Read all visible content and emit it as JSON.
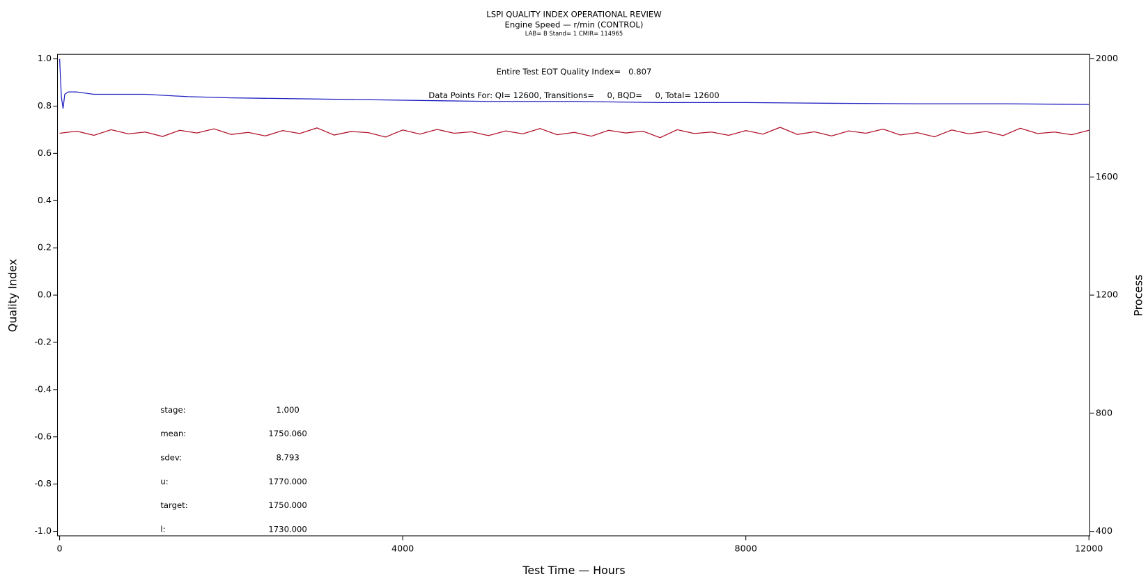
{
  "chart_data": {
    "type": "line",
    "title": "LSPI QUALITY INDEX OPERATIONAL REVIEW",
    "subtitle": "Engine Speed — r/min (CONTROL)",
    "subtitle2": "LAB= B Stand= 1 CMIR= 114965",
    "annotations": [
      "Entire Test EOT Quality Index=   0.807",
      "Data Points For: QI= 12600, Transitions=     0, BQD=     0, Total= 12600"
    ],
    "stats": [
      {
        "label": "stage:",
        "value": "1.000"
      },
      {
        "label": "mean:",
        "value": "1750.060"
      },
      {
        "label": "sdev:",
        "value": "8.793"
      },
      {
        "label": "u:",
        "value": "1770.000"
      },
      {
        "label": "target:",
        "value": "1750.000"
      },
      {
        "label": "l:",
        "value": "1730.000"
      }
    ],
    "x_label": "Test Time — Hours",
    "y_label": "Quality Index",
    "y2_label": "Process",
    "xlim": [
      -25,
      12010
    ],
    "xticks": [
      0,
      4000,
      8000,
      12000
    ],
    "ylim": [
      -1.019,
      1.019
    ],
    "yticks": [
      {
        "value": 1,
        "label": "1.0"
      },
      0.8,
      0.6,
      0.4,
      0.2,
      {
        "value": 0,
        "label": "0.0"
      },
      -0.2,
      -0.4,
      -0.6,
      -0.8,
      {
        "value": -1,
        "label": "-1.0"
      }
    ],
    "y2lim": [
      385,
      2015
    ],
    "y2ticks": [
      400,
      800,
      1200,
      1600,
      2000
    ],
    "series": [
      {
        "name": "Process",
        "color": "#b0102a",
        "axis": "y2",
        "x": [
          0,
          200,
          400,
          600,
          800,
          1000,
          1200,
          1400,
          1600,
          1800,
          2000,
          2200,
          2400,
          2600,
          2800,
          3000,
          3200,
          3400,
          3600,
          3800,
          4000,
          4200,
          4400,
          4600,
          4800,
          5000,
          5200,
          5400,
          5600,
          5800,
          6000,
          6200,
          6400,
          6600,
          6800,
          7000,
          7200,
          7400,
          7600,
          7800,
          8000,
          8200,
          8400,
          8600,
          8800,
          9000,
          9200,
          9400,
          9600,
          9800,
          10000,
          10200,
          10400,
          10600,
          10800,
          11000,
          11200,
          11400,
          11600,
          11800,
          12000
        ],
        "values": [
          1748,
          1755,
          1741,
          1760,
          1746,
          1752,
          1737,
          1758,
          1749,
          1763,
          1744,
          1751,
          1739,
          1757,
          1747,
          1766,
          1742,
          1754,
          1750,
          1735,
          1759,
          1745,
          1761,
          1748,
          1753,
          1740,
          1756,
          1746,
          1764,
          1743,
          1751,
          1738,
          1758,
          1749,
          1755,
          1733,
          1760,
          1747,
          1752,
          1741,
          1757,
          1745,
          1768,
          1744,
          1753,
          1739,
          1756,
          1748,
          1762,
          1742,
          1750,
          1736,
          1759,
          1746,
          1754,
          1740,
          1765,
          1747,
          1752,
          1743,
          1758
        ]
      },
      {
        "name": "Quality Index",
        "color": "#2020c0",
        "axis": "y",
        "x": [
          0,
          10,
          20,
          40,
          60,
          100,
          200,
          400,
          600,
          800,
          1000,
          1500,
          2000,
          3000,
          4000,
          5000,
          6000,
          7000,
          8000,
          9000,
          10000,
          11000,
          12000
        ],
        "values": [
          1.0,
          0.92,
          0.84,
          0.79,
          0.85,
          0.86,
          0.86,
          0.85,
          0.85,
          0.85,
          0.85,
          0.84,
          0.835,
          0.83,
          0.825,
          0.82,
          0.82,
          0.815,
          0.815,
          0.812,
          0.81,
          0.81,
          0.807
        ]
      }
    ]
  }
}
